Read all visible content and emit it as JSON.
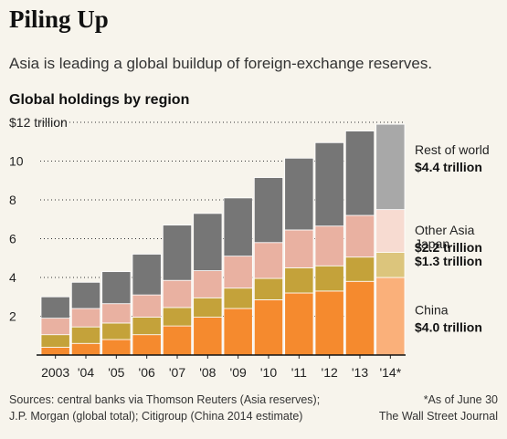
{
  "header": {
    "title": "Piling Up",
    "subtitle": "Asia is leading a global buildup of foreign-exchange reserves.",
    "section_label": "Global holdings by region"
  },
  "footer": {
    "sources_line1": "Sources: central banks via Thomson Reuters (Asia reserves);",
    "sources_line2": "J.P. Morgan (global total); Citigroup (China 2014 estimate)",
    "note": "*As of June 30",
    "credit": "The Wall Street Journal"
  },
  "chart_data": {
    "type": "bar",
    "stacked": true,
    "title": "Global holdings by region",
    "ylim": [
      0,
      12
    ],
    "yticks": [
      0,
      2,
      4,
      6,
      8,
      10,
      12
    ],
    "ytick_labels": [
      "",
      "2",
      "4",
      "6",
      "8",
      "10",
      "$12 trillion"
    ],
    "grid": "dotted horizontal",
    "categories": [
      "2003",
      "'04",
      "'05",
      "'06",
      "'07",
      "'08",
      "'09",
      "'10",
      "'11",
      "'12",
      "'13",
      "'14*"
    ],
    "series": [
      {
        "name": "China",
        "color": "#f58a2e",
        "highlight_color": "#fab07a",
        "values": [
          0.4,
          0.6,
          0.8,
          1.05,
          1.5,
          1.95,
          2.4,
          2.85,
          3.2,
          3.3,
          3.8,
          4.0
        ]
      },
      {
        "name": "Japan",
        "color": "#c4a23a",
        "highlight_color": "#dcc57c",
        "values": [
          0.65,
          0.85,
          0.85,
          0.9,
          0.95,
          1.0,
          1.05,
          1.1,
          1.3,
          1.3,
          1.25,
          1.3
        ]
      },
      {
        "name": "Other Asia",
        "color": "#e9b1a1",
        "highlight_color": "#f7dbd1",
        "values": [
          0.85,
          0.95,
          1.0,
          1.15,
          1.4,
          1.4,
          1.65,
          1.85,
          1.95,
          2.05,
          2.15,
          2.2
        ]
      },
      {
        "name": "Rest of world",
        "color": "#767676",
        "highlight_color": "#a8a8a8",
        "values": [
          1.1,
          1.35,
          1.65,
          2.1,
          2.85,
          2.95,
          3.0,
          3.35,
          3.7,
          4.3,
          4.35,
          4.4
        ]
      }
    ],
    "legend": {
      "placement": "right",
      "items": [
        {
          "series": "Rest of world",
          "value_label": "$4.4 trillion"
        },
        {
          "series": "Other Asia",
          "value_label": "$2.2 trillion"
        },
        {
          "series": "Japan",
          "value_label": "$1.3 trillion"
        },
        {
          "series": "China",
          "value_label": "$4.0 trillion"
        }
      ]
    },
    "highlight_last_bar": true
  }
}
